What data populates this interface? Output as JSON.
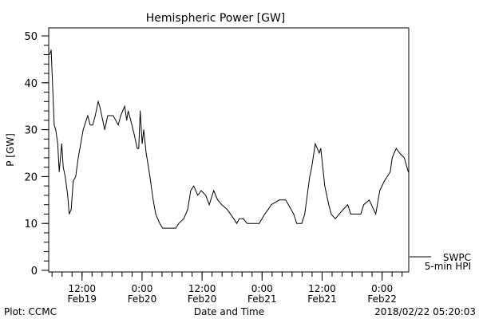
{
  "chart_data": {
    "type": "line",
    "title": "Hemispheric Power [GW]",
    "xlabel": "Date and Time",
    "ylabel": "P [GW]",
    "x_units": "hours since 2018/02/19 05:20",
    "xlim": [
      0,
      72
    ],
    "ylim": [
      0,
      50
    ],
    "yticks": [
      0,
      10,
      20,
      30,
      40,
      50
    ],
    "yminor_step": 2,
    "xminor_start": 0.67,
    "xminor_step": 2,
    "xticks": [
      {
        "x": 6.67,
        "time": "12:00",
        "date": "Feb19"
      },
      {
        "x": 18.67,
        "time": "0:00",
        "date": "Feb20"
      },
      {
        "x": 30.67,
        "time": "12:00",
        "date": "Feb20"
      },
      {
        "x": 42.67,
        "time": "0:00",
        "date": "Feb21"
      },
      {
        "x": 54.67,
        "time": "12:00",
        "date": "Feb21"
      },
      {
        "x": 66.67,
        "time": "0:00",
        "date": "Feb22"
      }
    ],
    "legend": {
      "placement": "right-bottom",
      "line1": "SWPC",
      "line2": "5-min HPI"
    },
    "series": [
      {
        "name": "SWPC 5-min HPI",
        "x": [
          0.2,
          0.5,
          1.1,
          1.4,
          1.8,
          2.1,
          2.6,
          2.9,
          3.3,
          3.8,
          4.1,
          4.5,
          4.9,
          5.4,
          5.9,
          6.9,
          7.5,
          7.8,
          8.3,
          8.8,
          9.3,
          9.9,
          10.2,
          11.2,
          11.8,
          12.9,
          13.4,
          13.9,
          14.4,
          15.2,
          15.6,
          15.9,
          16.4,
          17.1,
          17.7,
          18.0,
          18.3,
          18.7,
          19.0,
          19.5,
          20.1,
          20.9,
          21.4,
          22.2,
          22.8,
          25.4,
          26.0,
          27.0,
          27.8,
          28.4,
          29.0,
          29.8,
          30.5,
          31.4,
          32.1,
          33.0,
          33.8,
          34.6,
          35.7,
          37.0,
          37.6,
          38.1,
          38.9,
          39.7,
          42.1,
          43.2,
          43.9,
          44.5,
          46.1,
          47.4,
          49.0,
          49.6,
          50.6,
          51.2,
          52.2,
          52.6,
          53.3,
          54.1,
          54.4,
          55.2,
          56.0,
          56.5,
          57.3,
          58.1,
          58.9,
          59.8,
          60.4,
          62.4,
          63.0,
          64.1,
          65.4,
          66.2,
          67.1,
          68.3,
          68.7,
          69.5,
          70.2,
          71.1,
          71.9
        ],
        "y": [
          46,
          47,
          31,
          30,
          27,
          21,
          27,
          22,
          20,
          16,
          12,
          13,
          19,
          20,
          24,
          30,
          32,
          33,
          31,
          31,
          33,
          36,
          35,
          30,
          33,
          33,
          32,
          31,
          33,
          35,
          32,
          34,
          32,
          29,
          26,
          26,
          34,
          27,
          30,
          25,
          21,
          15,
          12,
          10,
          9,
          9,
          10,
          11,
          13,
          17,
          18,
          16,
          17,
          16,
          14,
          17,
          15,
          14,
          13,
          11,
          10,
          11,
          11,
          10,
          10,
          12,
          13,
          14,
          15,
          15,
          12,
          10,
          10,
          12,
          20,
          22,
          27,
          25,
          26,
          18,
          14,
          12,
          11,
          12,
          13,
          14,
          12,
          12,
          14,
          15,
          12,
          17,
          19,
          21,
          24,
          26,
          25,
          24,
          21
        ]
      }
    ]
  },
  "footer": {
    "plot_credit": "Plot: CCMC",
    "timestamp": "2018/02/22 05:20:03"
  }
}
